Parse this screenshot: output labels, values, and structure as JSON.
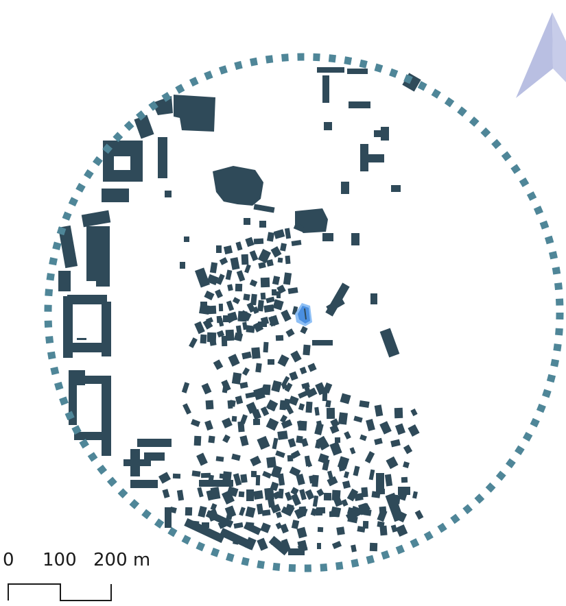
{
  "map": {
    "colors": {
      "building": "#2f4a59",
      "highlight_building": "#4a8fe0",
      "highlight_glow": "#8fc0f5",
      "boundary_ring": "#4f8698",
      "north_arrow": "#b9bfe2",
      "background": "#ffffff"
    },
    "boundary": {
      "style": "dotted circle"
    },
    "north_arrow": {
      "icon": "north-arrow-icon"
    },
    "scale_bar": {
      "label_0": "0",
      "label_100": "100",
      "label_200": "200 m"
    }
  }
}
